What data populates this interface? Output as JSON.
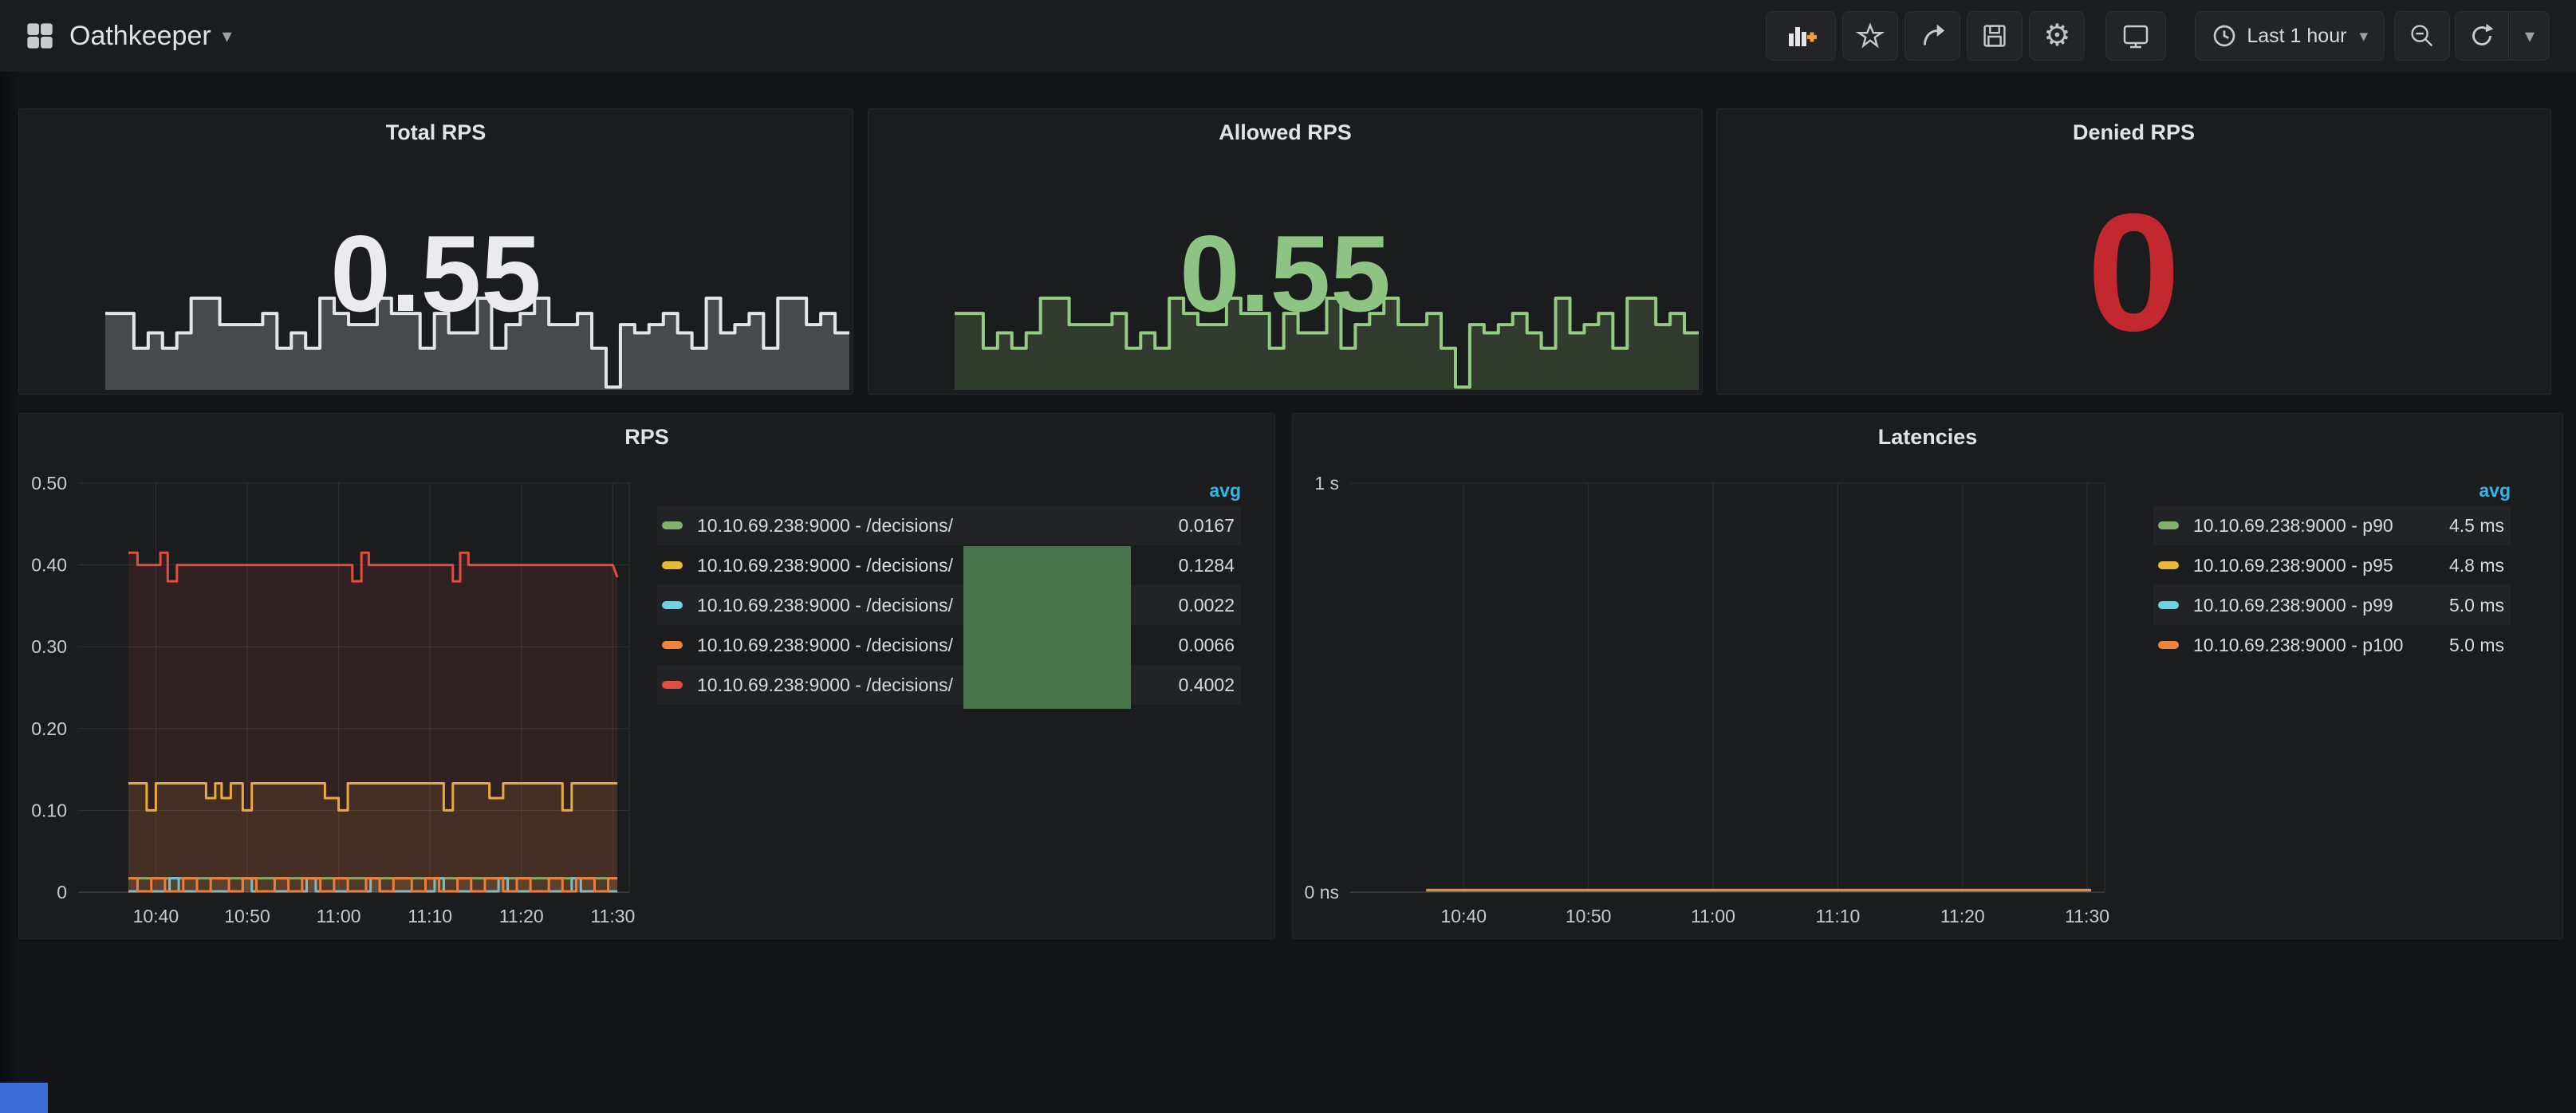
{
  "colors": {
    "stat_white": "#ebebed",
    "stat_green": "#8dc483",
    "stat_red": "#c4282f",
    "avg_blue": "#33b5e5"
  },
  "header": {
    "title": "Oathkeeper",
    "time_range": "Last 1 hour",
    "caret": "▾"
  },
  "panels": {
    "total_rps": {
      "title": "Total RPS",
      "value": "0.55"
    },
    "allowed_rps": {
      "title": "Allowed RPS",
      "value": "0.55"
    },
    "denied_rps": {
      "title": "Denied RPS",
      "value": "0"
    },
    "rps": {
      "title": "RPS",
      "legend": {
        "header": "avg",
        "rows": [
          {
            "label": "10.10.69.238:9000 - /decisions/",
            "value": "0.0167"
          },
          {
            "label": "10.10.69.238:9000 - /decisions/",
            "value": "0.1284"
          },
          {
            "label": "10.10.69.238:9000 - /decisions/",
            "value": "0.0022"
          },
          {
            "label": "10.10.69.238:9000 - /decisions/",
            "value": "0.0066"
          },
          {
            "label": "10.10.69.238:9000 - /decisions/",
            "value": "0.4002"
          }
        ]
      }
    },
    "latencies": {
      "title": "Latencies",
      "legend": {
        "header": "avg",
        "rows": [
          {
            "label": "10.10.69.238:9000 - p90",
            "value": "4.5 ms"
          },
          {
            "label": "10.10.69.238:9000 - p95",
            "value": "4.8 ms"
          },
          {
            "label": "10.10.69.238:9000 - p99",
            "value": "5.0 ms"
          },
          {
            "label": "10.10.69.238:9000 - p100",
            "value": "5.0 ms"
          }
        ]
      }
    }
  },
  "chart_data": [
    {
      "type": "line",
      "title": "RPS",
      "ylim": [
        0,
        0.5
      ],
      "xlim": [
        "10:31.5",
        "11:31.8"
      ],
      "yticks": [
        [
          0.5,
          "0.50"
        ],
        [
          0.4,
          "0.40"
        ],
        [
          0.3,
          "0.30"
        ],
        [
          0.2,
          "0.20"
        ],
        [
          0.1,
          "0.10"
        ],
        [
          0,
          "0"
        ]
      ],
      "xticks": [
        [
          "10:40",
          "10:40"
        ],
        [
          "10:50",
          "10:50"
        ],
        [
          "11:00",
          "11:00"
        ],
        [
          "11:10",
          "11:10"
        ],
        [
          "11:20",
          "11:20"
        ],
        [
          "11:30",
          "11:30"
        ]
      ],
      "grid": true,
      "legend_position": "right",
      "series": [
        {
          "name": "10.10.69.238:9000 - /decisions/",
          "color": "#7eb26d",
          "fill": 0.1,
          "points": [
            [
              "10:37",
              0.017
            ],
            [
              "11:30.5",
              0.017
            ]
          ]
        },
        {
          "name": "10.10.69.238:9000 - /decisions/",
          "color": "#eab839",
          "fill": 0.1,
          "points": [
            [
              "10:37",
              0.133
            ],
            [
              "10:39",
              0.133
            ],
            [
              "10:39",
              0.1
            ],
            [
              "10:40",
              0.1
            ],
            [
              "10:40",
              0.133
            ],
            [
              "10:45.5",
              0.133
            ],
            [
              "10:45.5",
              0.115
            ],
            [
              "10:46.5",
              0.115
            ],
            [
              "10:46.5",
              0.133
            ],
            [
              "10:47.2",
              0.133
            ],
            [
              "10:47.2",
              0.115
            ],
            [
              "10:48.2",
              0.115
            ],
            [
              "10:48.2",
              0.133
            ],
            [
              "10:49.5",
              0.133
            ],
            [
              "10:49.5",
              0.1
            ],
            [
              "10:50.5",
              0.1
            ],
            [
              "10:50.5",
              0.133
            ],
            [
              "10:58.5",
              0.133
            ],
            [
              "10:58.5",
              0.115
            ],
            [
              "11:00",
              0.115
            ],
            [
              "11:00",
              0.1
            ],
            [
              "11:01",
              0.1
            ],
            [
              "11:01",
              0.133
            ],
            [
              "11:11.5",
              0.133
            ],
            [
              "11:11.5",
              0.1
            ],
            [
              "11:12.5",
              0.1
            ],
            [
              "11:12.5",
              0.133
            ],
            [
              "11:16.5",
              0.133
            ],
            [
              "11:16.5",
              0.115
            ],
            [
              "11:18",
              0.115
            ],
            [
              "11:18",
              0.133
            ],
            [
              "11:24.5",
              0.133
            ],
            [
              "11:24.5",
              0.1
            ],
            [
              "11:25.5",
              0.1
            ],
            [
              "11:25.5",
              0.133
            ],
            [
              "11:30.5",
              0.133
            ]
          ]
        },
        {
          "name": "10.10.69.238:9000 - /decisions/",
          "color": "#6ed0e0",
          "fill": 0.08,
          "points": [
            [
              "10:37",
              0.001
            ],
            [
              "10:41.5",
              0.001
            ],
            [
              "10:41.5",
              0.017
            ],
            [
              "10:42.5",
              0.017
            ],
            [
              "10:42.5",
              0.001
            ],
            [
              "10:49.5",
              0.001
            ],
            [
              "10:49.5",
              0.017
            ],
            [
              "10:50.5",
              0.017
            ],
            [
              "10:50.5",
              0.001
            ],
            [
              "10:56.5",
              0.001
            ],
            [
              "10:56.5",
              0.017
            ],
            [
              "10:57.5",
              0.017
            ],
            [
              "10:57.5",
              0.001
            ],
            [
              "11:03.5",
              0.001
            ],
            [
              "11:03.5",
              0.017
            ],
            [
              "11:04.5",
              0.017
            ],
            [
              "11:04.5",
              0.001
            ],
            [
              "11:10.5",
              0.001
            ],
            [
              "11:10.5",
              0.017
            ],
            [
              "11:11.5",
              0.017
            ],
            [
              "11:11.5",
              0.001
            ],
            [
              "11:17.5",
              0.001
            ],
            [
              "11:17.5",
              0.017
            ],
            [
              "11:18.5",
              0.017
            ],
            [
              "11:18.5",
              0.001
            ],
            [
              "11:25.5",
              0.001
            ],
            [
              "11:25.5",
              0.017
            ],
            [
              "11:26.5",
              0.017
            ],
            [
              "11:26.5",
              0.001
            ],
            [
              "11:30.5",
              0.001
            ]
          ]
        },
        {
          "name": "10.10.69.238:9000 - /decisions/",
          "color": "#ef843c",
          "fill": 0.1,
          "points": [
            [
              "10:37",
              0.017
            ],
            [
              "10:38",
              0.017
            ],
            [
              "10:38",
              0.001
            ],
            [
              "10:39.5",
              0.001
            ],
            [
              "10:39.5",
              0.017
            ],
            [
              "10:41",
              0.017
            ],
            [
              "10:41",
              0.001
            ],
            [
              "10:43",
              0.001
            ],
            [
              "10:43",
              0.017
            ],
            [
              "10:44.5",
              0.017
            ],
            [
              "10:44.5",
              0.001
            ],
            [
              "10:46",
              0.001
            ],
            [
              "10:46",
              0.017
            ],
            [
              "10:48",
              0.017
            ],
            [
              "10:48",
              0.001
            ],
            [
              "10:49.5",
              0.001
            ],
            [
              "10:49.5",
              0.017
            ],
            [
              "10:51",
              0.017
            ],
            [
              "10:51",
              0.001
            ],
            [
              "10:53",
              0.001
            ],
            [
              "10:53",
              0.017
            ],
            [
              "10:54.5",
              0.017
            ],
            [
              "10:54.5",
              0.001
            ],
            [
              "10:56",
              0.001
            ],
            [
              "10:56",
              0.017
            ],
            [
              "10:58",
              0.017
            ],
            [
              "10:58",
              0.001
            ],
            [
              "10:59.5",
              0.001
            ],
            [
              "10:59.5",
              0.017
            ],
            [
              "11:01",
              0.017
            ],
            [
              "11:01",
              0.001
            ],
            [
              "11:03",
              0.001
            ],
            [
              "11:03",
              0.017
            ],
            [
              "11:04.5",
              0.017
            ],
            [
              "11:04.5",
              0.001
            ],
            [
              "11:06",
              0.001
            ],
            [
              "11:06",
              0.017
            ],
            [
              "11:08",
              0.017
            ],
            [
              "11:08",
              0.001
            ],
            [
              "11:09.5",
              0.001
            ],
            [
              "11:09.5",
              0.017
            ],
            [
              "11:11",
              0.017
            ],
            [
              "11:11",
              0.001
            ],
            [
              "11:13",
              0.001
            ],
            [
              "11:13",
              0.017
            ],
            [
              "11:14.5",
              0.017
            ],
            [
              "11:14.5",
              0.001
            ],
            [
              "11:16",
              0.001
            ],
            [
              "11:16",
              0.017
            ],
            [
              "11:18",
              0.017
            ],
            [
              "11:18",
              0.001
            ],
            [
              "11:19.5",
              0.001
            ],
            [
              "11:19.5",
              0.017
            ],
            [
              "11:21",
              0.017
            ],
            [
              "11:21",
              0.001
            ],
            [
              "11:23",
              0.001
            ],
            [
              "11:23",
              0.017
            ],
            [
              "11:24.5",
              0.017
            ],
            [
              "11:24.5",
              0.001
            ],
            [
              "11:26",
              0.001
            ],
            [
              "11:26",
              0.017
            ],
            [
              "11:28",
              0.017
            ],
            [
              "11:28",
              0.001
            ],
            [
              "11:29.5",
              0.001
            ],
            [
              "11:29.5",
              0.017
            ],
            [
              "11:30.5",
              0.017
            ]
          ]
        },
        {
          "name": "10.10.69.238:9000 - /decisions/",
          "color": "#e24d42",
          "fill": 0.12,
          "points": [
            [
              "10:37",
              0.415
            ],
            [
              "10:38",
              0.415
            ],
            [
              "10:38",
              0.4
            ],
            [
              "10:40.5",
              0.4
            ],
            [
              "10:40.5",
              0.415
            ],
            [
              "10:41.3",
              0.415
            ],
            [
              "10:41.3",
              0.38
            ],
            [
              "10:42.3",
              0.38
            ],
            [
              "10:42.3",
              0.4
            ],
            [
              "11:01.5",
              0.4
            ],
            [
              "11:01.5",
              0.38
            ],
            [
              "11:02.5",
              0.38
            ],
            [
              "11:02.5",
              0.415
            ],
            [
              "11:03.3",
              0.415
            ],
            [
              "11:03.3",
              0.4
            ],
            [
              "11:12.5",
              0.4
            ],
            [
              "11:12.5",
              0.38
            ],
            [
              "11:13.3",
              0.38
            ],
            [
              "11:13.3",
              0.415
            ],
            [
              "11:14.2",
              0.415
            ],
            [
              "11:14.2",
              0.4
            ],
            [
              "11:30",
              0.4
            ],
            [
              "11:30.5",
              0.385
            ]
          ]
        }
      ]
    },
    {
      "type": "line",
      "title": "Latencies",
      "ylim": [
        0,
        1
      ],
      "xlim": [
        "10:30.9",
        "11:31.4"
      ],
      "yticks": [
        [
          1,
          "1 s"
        ],
        [
          0,
          "0 ns"
        ]
      ],
      "xticks": [
        [
          "10:40",
          "10:40"
        ],
        [
          "10:50",
          "10:50"
        ],
        [
          "11:00",
          "11:00"
        ],
        [
          "11:10",
          "11:10"
        ],
        [
          "11:20",
          "11:20"
        ],
        [
          "11:30",
          "11:30"
        ]
      ],
      "grid": true,
      "legend_position": "right",
      "series": [
        {
          "name": "10.10.69.238:9000 - p90",
          "color": "#7eb26d",
          "fill": 0,
          "points": [
            [
              "10:37",
              0.0045
            ],
            [
              "11:30.3",
              0.0045
            ]
          ]
        },
        {
          "name": "10.10.69.238:9000 - p95",
          "color": "#eab839",
          "fill": 0,
          "points": [
            [
              "10:37",
              0.0048
            ],
            [
              "11:30.3",
              0.0048
            ]
          ]
        },
        {
          "name": "10.10.69.238:9000 - p99",
          "color": "#6ed0e0",
          "fill": 0,
          "points": [
            [
              "10:37",
              0.005
            ],
            [
              "11:30.3",
              0.005
            ]
          ]
        },
        {
          "name": "10.10.69.238:9000 - p100",
          "color": "#ef843c",
          "fill": 0,
          "points": [
            [
              "10:37",
              0.005
            ],
            [
              "11:30.3",
              0.005
            ]
          ]
        }
      ]
    },
    {
      "type": "sparkline",
      "panel": "Total RPS",
      "unit": "rps",
      "vmax": 0.7,
      "color": "#e4e5e7",
      "fill_color": "rgba(255,255,255,0.20)",
      "values": [
        0.55,
        0.55,
        0.3,
        0.41,
        0.3,
        0.41,
        0.66,
        0.66,
        0.47,
        0.47,
        0.47,
        0.55,
        0.3,
        0.41,
        0.3,
        0.66,
        0.55,
        0.47,
        0.47,
        0.66,
        0.55,
        0.55,
        0.3,
        0.55,
        0.41,
        0.41,
        0.66,
        0.3,
        0.47,
        0.55,
        0.66,
        0.47,
        0.47,
        0.55,
        0.3,
        0.02,
        0.47,
        0.41,
        0.47,
        0.55,
        0.41,
        0.3,
        0.66,
        0.41,
        0.47,
        0.55,
        0.3,
        0.66,
        0.66,
        0.47,
        0.55,
        0.41
      ]
    },
    {
      "type": "sparkline",
      "panel": "Allowed RPS",
      "unit": "rps",
      "vmax": 0.7,
      "color": "#92cb81",
      "fill_color": "rgba(126,178,109,0.22)",
      "values": [
        0.55,
        0.55,
        0.3,
        0.41,
        0.3,
        0.41,
        0.66,
        0.66,
        0.47,
        0.47,
        0.47,
        0.55,
        0.3,
        0.41,
        0.3,
        0.66,
        0.55,
        0.47,
        0.47,
        0.66,
        0.55,
        0.55,
        0.3,
        0.55,
        0.41,
        0.41,
        0.66,
        0.3,
        0.47,
        0.55,
        0.66,
        0.47,
        0.47,
        0.55,
        0.3,
        0.02,
        0.47,
        0.41,
        0.47,
        0.55,
        0.41,
        0.3,
        0.66,
        0.41,
        0.47,
        0.55,
        0.3,
        0.66,
        0.66,
        0.47,
        0.55,
        0.41
      ]
    }
  ]
}
